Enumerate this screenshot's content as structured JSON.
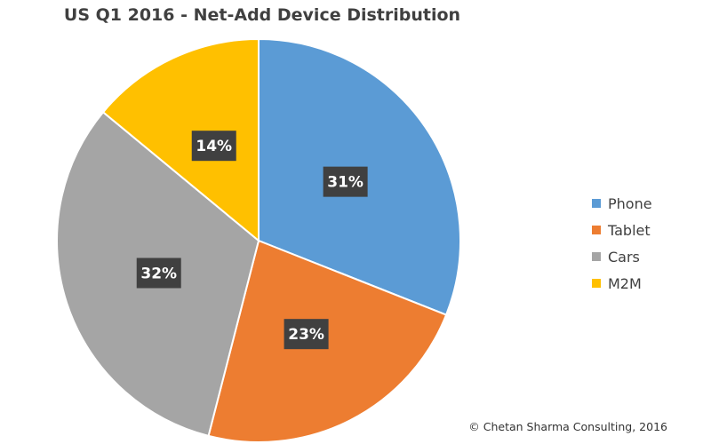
{
  "chart_data": {
    "type": "pie",
    "title": "US Q1 2016 - Net-Add Device Distribution",
    "slices": [
      {
        "name": "Phone",
        "value": 31,
        "label": "31%",
        "color": "#5b9bd5"
      },
      {
        "name": "Tablet",
        "value": 23,
        "label": "23%",
        "color": "#ed7d31"
      },
      {
        "name": "Cars",
        "value": 32,
        "label": "32%",
        "color": "#a5a5a5"
      },
      {
        "name": "M2M",
        "value": 14,
        "label": "14%",
        "color": "#ffc000"
      }
    ],
    "legend_placement": "right",
    "label_style": {
      "background": "#404040",
      "color": "#ffffff"
    }
  },
  "footer": {
    "credit": "© Chetan Sharma Consulting, 2016"
  }
}
